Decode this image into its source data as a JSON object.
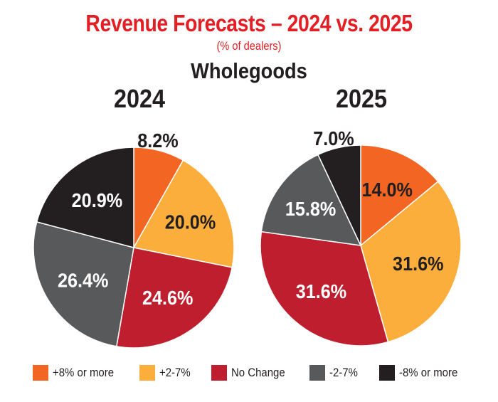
{
  "chart_data": {
    "type": "pie",
    "title": "Revenue Forecasts – 2024 vs. 2025",
    "subtitle": "(% of dealers)",
    "section": "Wholegoods",
    "legend_position": "bottom",
    "categories": [
      "+8% or more",
      "+2-7%",
      "No Change",
      "-2-7%",
      "-8% or more"
    ],
    "colors": [
      "#f26522",
      "#fbae3c",
      "#be1e2d",
      "#58595b",
      "#231f20"
    ],
    "label_colors": [
      "#231f20",
      "#231f20",
      "#ffffff",
      "#ffffff",
      "#ffffff"
    ],
    "charts": [
      {
        "name": "2024",
        "values": [
          8.2,
          20.0,
          24.6,
          26.4,
          20.9
        ],
        "labels": [
          "8.2%",
          "20.0%",
          "24.6%",
          "26.4%",
          "20.9%"
        ]
      },
      {
        "name": "2025",
        "values": [
          14.0,
          31.6,
          31.6,
          15.8,
          7.0
        ],
        "labels": [
          "14.0%",
          "31.6%",
          "31.6%",
          "15.8%",
          "7.0%"
        ]
      }
    ]
  }
}
